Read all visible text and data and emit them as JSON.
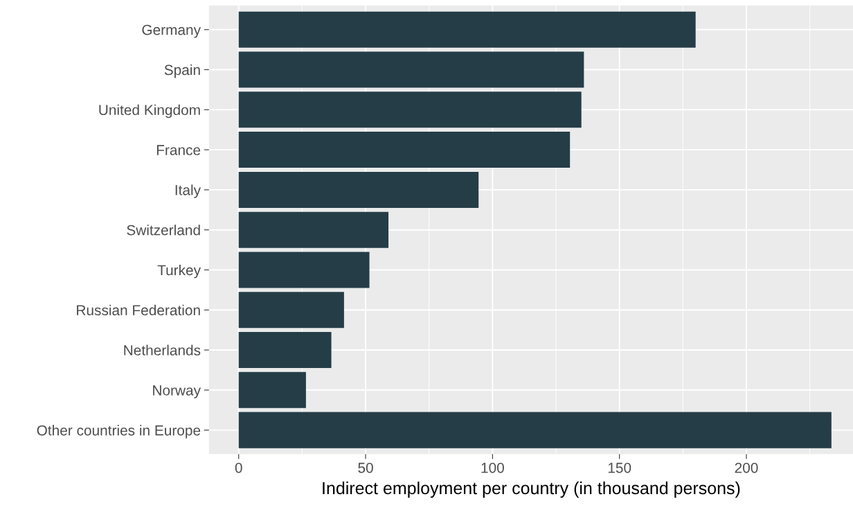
{
  "chart_data": {
    "type": "bar",
    "orientation": "horizontal",
    "categories": [
      "Germany",
      "Spain",
      "United Kingdom",
      "France",
      "Italy",
      "Switzerland",
      "Turkey",
      "Russian Federation",
      "Netherlands",
      "Norway",
      "Other countries in Europe"
    ],
    "values": [
      180,
      136,
      135,
      130.5,
      94.5,
      59,
      51.5,
      41.5,
      36.5,
      26.5,
      233.5
    ],
    "color": "#253d47",
    "xlabel": "Indirect employment per country (in thousand persons)",
    "xlim": [
      -11.7,
      242
    ],
    "xticks": [
      0,
      {
        "value": 25,
        "label": null
      },
      50,
      {
        "value": 75,
        "label": null
      },
      100,
      {
        "value": 125,
        "label": null
      },
      150,
      {
        "value": 175,
        "label": null
      },
      200,
      {
        "value": 225,
        "label": null
      }
    ],
    "grid": true,
    "legend": false
  }
}
